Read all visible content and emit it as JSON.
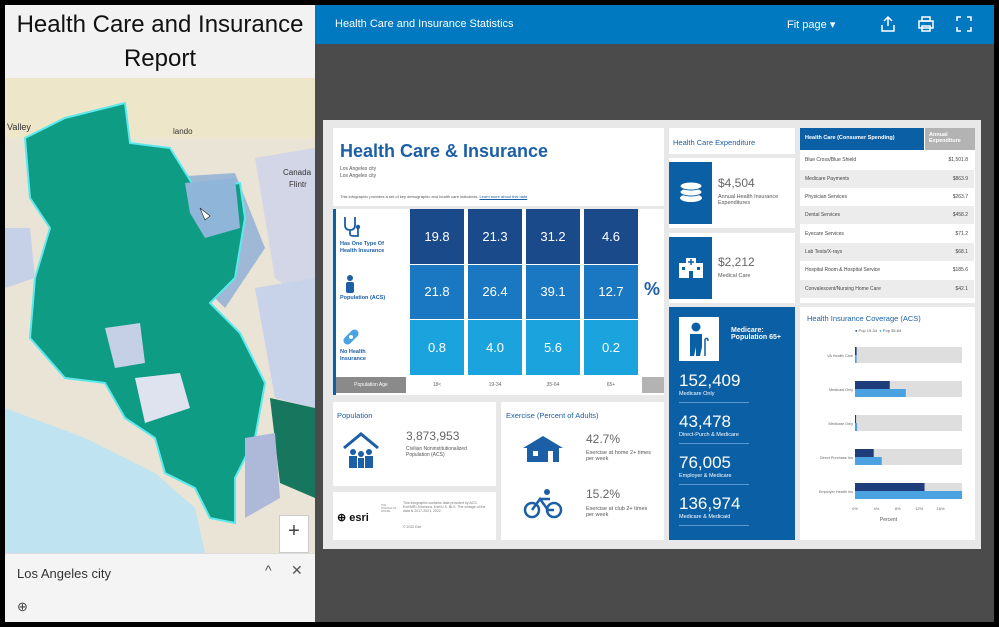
{
  "left_panel": {
    "title": "Health Care and Insurance Report",
    "map_labels": {
      "valley": "Valley",
      "lando": "lando",
      "canada": "Canada",
      "flintridge": "Flintr"
    },
    "zoom_in": "+",
    "popup": {
      "title": "Los Angeles city",
      "collapse": "^",
      "close": "✕",
      "zoom_icon": "⊕"
    }
  },
  "topbar": {
    "title": "Health Care and Insurance Statistics",
    "fit_page": "Fit page"
  },
  "infographic": {
    "title": "Health Care & Insurance",
    "subtitle1": "Los Angeles city",
    "subtitle2": "Los Angeles city",
    "desc": "This infographic provides a set of key demographic and health care indicators.",
    "desc_link": "Learn more about this data",
    "rows": [
      {
        "label": "Has One Type Of Health Insurance",
        "values": [
          "19.8",
          "21.3",
          "31.2",
          "4.6"
        ],
        "color": "#1b4a8a"
      },
      {
        "label": "Population (ACS)",
        "values": [
          "21.8",
          "26.4",
          "39.1",
          "12.7"
        ],
        "color": "#1a78c2"
      },
      {
        "label": "No Health Insurance",
        "values": [
          "0.8",
          "4.0",
          "5.6",
          "0.2"
        ],
        "color": "#1aa3dd"
      }
    ],
    "age_label": "Population Age",
    "ages": [
      "18<",
      "19-34",
      "35-64",
      "65+"
    ],
    "percent_sign": "%",
    "population": {
      "title": "Population",
      "value": "3,873,953",
      "label": "Civilian Noninstitutionalized Population (ACS)"
    },
    "exercise": {
      "title": "Exercise (Percent of Adults)",
      "home_value": "42.7%",
      "home_label": "Exercise at home 2+ times per week",
      "club_value": "15.2%",
      "club_label": "Exercise at club 2+ times per week"
    },
    "footer": {
      "brand": "esri",
      "tag": "THE SCIENCE OF WHERE",
      "note": "This infographic contains data provided by ACS, Esri/MRI-Simmons, Esri/U.S. BLS. The vintage of the data is 2017-2021, 2022.",
      "copyright": "© 2022 Esri"
    },
    "expenditure": {
      "title": "Health Care Expenditure",
      "annual_value": "$4,504",
      "annual_label": "Annual Health Insurance Expenditures",
      "medical_value": "$2,212",
      "medical_label": "Medical Care"
    },
    "medicare": {
      "title": "Medicare: Population 65+",
      "items": [
        {
          "value": "152,409",
          "label": "Medicare Only"
        },
        {
          "value": "43,478",
          "label": "Direct-Purch & Medicare"
        },
        {
          "value": "76,005",
          "label": "Employer & Medicare"
        },
        {
          "value": "136,974",
          "label": "Medicare & Medicaid"
        }
      ]
    },
    "spending": {
      "header": "Health Care (Consumer Spending)",
      "header2": "Annual Expenditure",
      "rows": [
        {
          "name": "Blue Cross/Blue Shield",
          "value": "$1,501.8"
        },
        {
          "name": "Medicare Payments",
          "value": "$863.9"
        },
        {
          "name": "Physician Services",
          "value": "$263.7"
        },
        {
          "name": "Dental Services",
          "value": "$458.2"
        },
        {
          "name": "Eyecare Services",
          "value": "$71.2"
        },
        {
          "name": "Lab Tests/X-rays",
          "value": "$68.1"
        },
        {
          "name": "Hospital Room & Hospital Service",
          "value": "$185.6"
        },
        {
          "name": "Convalescent/Nursing Home Care",
          "value": "$42.1"
        }
      ]
    }
  },
  "chart_data": {
    "type": "bar",
    "title": "Health Insurance Coverage (ACS)",
    "categories": [
      "VA Health Care",
      "Medicaid Only",
      "Medicare Only",
      "Direct Purchase Ins",
      "Employer Health Ins"
    ],
    "series": [
      {
        "name": "Pop 19-34",
        "values": [
          0.3,
          6.5,
          0.2,
          3.5,
          13
        ],
        "color": "#1f3d7a"
      },
      {
        "name": "Pop 35-64",
        "values": [
          0.3,
          9.5,
          0.4,
          5,
          20
        ],
        "color": "#4aa3e0"
      }
    ],
    "xlabel": "Percent",
    "xticks": [
      "0%",
      "4%",
      "8%",
      "12%",
      "16%"
    ],
    "xlim": [
      0,
      20
    ]
  }
}
